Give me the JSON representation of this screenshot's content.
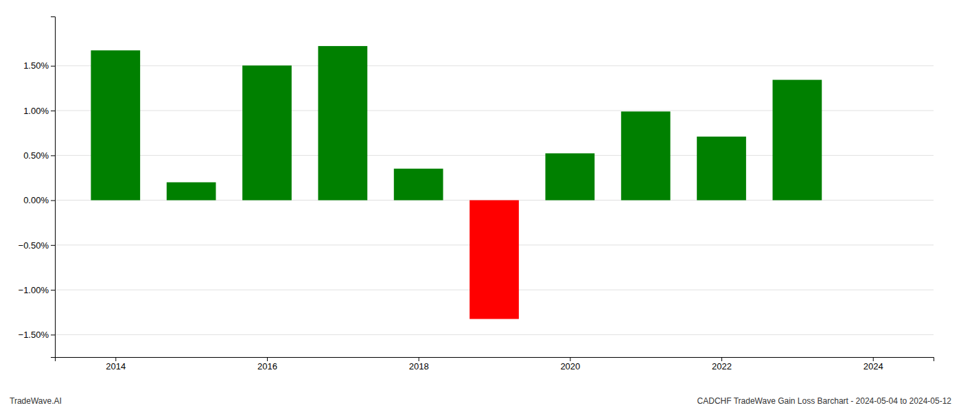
{
  "chart_data": {
    "type": "bar",
    "x": [
      2014,
      2015,
      2016,
      2017,
      2018,
      2019,
      2020,
      2021,
      2022,
      2023
    ],
    "values": [
      1.672,
      0.2,
      1.503,
      1.72,
      0.352,
      -1.325,
      0.523,
      0.99,
      0.71,
      1.343
    ],
    "colors": [
      "#008000",
      "#008000",
      "#008000",
      "#008000",
      "#008000",
      "#ff0000",
      "#008000",
      "#008000",
      "#008000",
      "#008000"
    ],
    "xlim": [
      2013.2,
      2024.8
    ],
    "xticks": [
      2014,
      2016,
      2018,
      2020,
      2022,
      2024
    ],
    "ylim": [
      -1.75,
      2.05
    ],
    "yticks": [
      {
        "value": -1.5,
        "label": "−1.50%"
      },
      {
        "value": -1.0,
        "label": "−1.00%"
      },
      {
        "value": -0.5,
        "label": "−0.50%"
      },
      {
        "value": 0.0,
        "label": "0.00%"
      },
      {
        "value": 0.5,
        "label": "0.50%"
      },
      {
        "value": 1.0,
        "label": "1.00%"
      },
      {
        "value": 1.5,
        "label": "1.50%"
      }
    ],
    "grid": true,
    "annotations": [
      "TradeWave.AI",
      "CADCHF TradeWave Gain Loss Barchart - 2024-05-04 to 2024-05-12"
    ]
  }
}
